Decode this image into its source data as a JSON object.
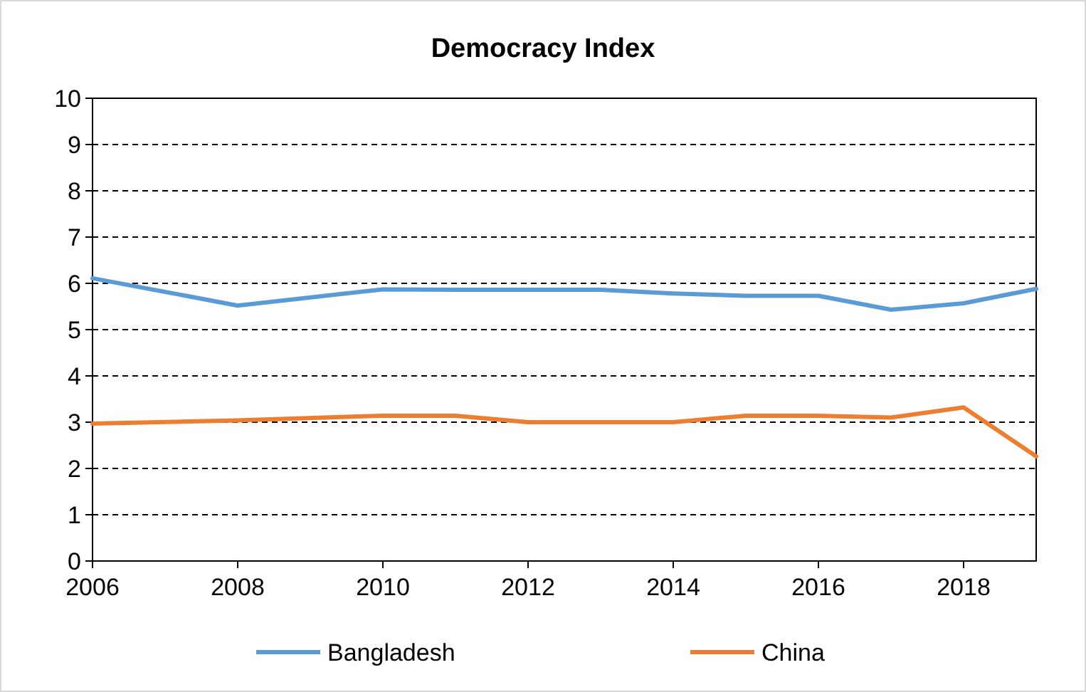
{
  "chart_data": {
    "type": "line",
    "title": "Democracy Index",
    "x": [
      2006,
      2008,
      2010,
      2011,
      2012,
      2013,
      2014,
      2015,
      2016,
      2017,
      2018,
      2019
    ],
    "series": [
      {
        "name": "Bangladesh",
        "color": "#5b9bd5",
        "values": [
          6.11,
          5.52,
          5.87,
          5.86,
          5.86,
          5.86,
          5.78,
          5.73,
          5.73,
          5.43,
          5.57,
          5.88
        ]
      },
      {
        "name": "China",
        "color": "#ed7d31",
        "values": [
          2.97,
          3.04,
          3.14,
          3.14,
          3.0,
          3.0,
          3.0,
          3.14,
          3.14,
          3.1,
          3.32,
          2.26
        ]
      }
    ],
    "xlim": [
      2006,
      2019
    ],
    "xticks": [
      2006,
      2008,
      2010,
      2012,
      2014,
      2016,
      2018
    ],
    "ylim": [
      0,
      10
    ],
    "yticks": [
      0,
      1,
      2,
      3,
      4,
      5,
      6,
      7,
      8,
      9,
      10
    ],
    "grid": "y",
    "legend": "bottom",
    "marker": "none",
    "line_style": "solid"
  }
}
